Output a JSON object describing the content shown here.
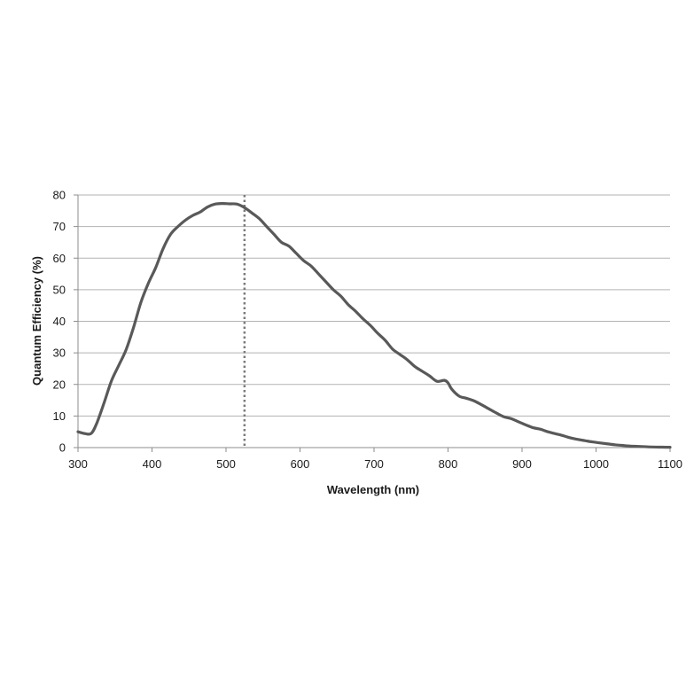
{
  "chart_data": {
    "type": "line",
    "title": "",
    "xlabel": "Wavelength (nm)",
    "ylabel": "Quantum Efficiency (%)",
    "xlim": [
      300,
      1100
    ],
    "ylim": [
      0,
      80
    ],
    "x_ticks": [
      300,
      400,
      500,
      600,
      700,
      800,
      900,
      1000,
      1100
    ],
    "y_ticks": [
      0,
      10,
      20,
      30,
      40,
      50,
      60,
      70,
      80
    ],
    "grid": "horizontal",
    "legend": "none",
    "series": [
      {
        "color": "#595959",
        "points": [
          [
            300,
            5.0
          ],
          [
            310,
            4.4
          ],
          [
            318,
            4.5
          ],
          [
            325,
            7.5
          ],
          [
            335,
            14
          ],
          [
            345,
            21
          ],
          [
            355,
            26
          ],
          [
            365,
            31
          ],
          [
            375,
            38
          ],
          [
            385,
            46
          ],
          [
            395,
            52
          ],
          [
            405,
            57
          ],
          [
            415,
            63
          ],
          [
            425,
            67.5
          ],
          [
            435,
            70
          ],
          [
            445,
            72
          ],
          [
            455,
            73.5
          ],
          [
            465,
            74.6
          ],
          [
            475,
            76.2
          ],
          [
            485,
            77.1
          ],
          [
            495,
            77.3
          ],
          [
            505,
            77.2
          ],
          [
            515,
            77.1
          ],
          [
            525,
            76
          ],
          [
            535,
            74.3
          ],
          [
            545,
            72.5
          ],
          [
            555,
            70
          ],
          [
            565,
            67.5
          ],
          [
            575,
            65
          ],
          [
            585,
            63.8
          ],
          [
            595,
            61.5
          ],
          [
            605,
            59.2
          ],
          [
            615,
            57.5
          ],
          [
            625,
            55
          ],
          [
            635,
            52.5
          ],
          [
            645,
            50
          ],
          [
            655,
            48
          ],
          [
            665,
            45.3
          ],
          [
            675,
            43.2
          ],
          [
            685,
            40.8
          ],
          [
            695,
            38.7
          ],
          [
            705,
            36.2
          ],
          [
            715,
            34
          ],
          [
            725,
            31.2
          ],
          [
            735,
            29.5
          ],
          [
            745,
            27.8
          ],
          [
            755,
            25.7
          ],
          [
            765,
            24.2
          ],
          [
            775,
            22.7
          ],
          [
            785,
            21
          ],
          [
            795,
            21.3
          ],
          [
            800,
            20.5
          ],
          [
            805,
            18.5
          ],
          [
            815,
            16.3
          ],
          [
            825,
            15.6
          ],
          [
            835,
            14.8
          ],
          [
            845,
            13.6
          ],
          [
            855,
            12.3
          ],
          [
            865,
            11
          ],
          [
            875,
            9.8
          ],
          [
            885,
            9.2
          ],
          [
            895,
            8.2
          ],
          [
            905,
            7.2
          ],
          [
            915,
            6.3
          ],
          [
            925,
            5.8
          ],
          [
            935,
            5
          ],
          [
            945,
            4.4
          ],
          [
            955,
            3.8
          ],
          [
            965,
            3.1
          ],
          [
            975,
            2.6
          ],
          [
            985,
            2.2
          ],
          [
            995,
            1.8
          ],
          [
            1005,
            1.5
          ],
          [
            1015,
            1.2
          ],
          [
            1025,
            0.9
          ],
          [
            1035,
            0.7
          ],
          [
            1045,
            0.5
          ],
          [
            1055,
            0.4
          ],
          [
            1065,
            0.3
          ],
          [
            1075,
            0.2
          ],
          [
            1085,
            0.15
          ],
          [
            1095,
            0.1
          ],
          [
            1100,
            0.1
          ]
        ]
      }
    ],
    "reference_line": {
      "axis": "x",
      "value": 525,
      "style": "dotted",
      "color": "#7a7a7a"
    }
  }
}
